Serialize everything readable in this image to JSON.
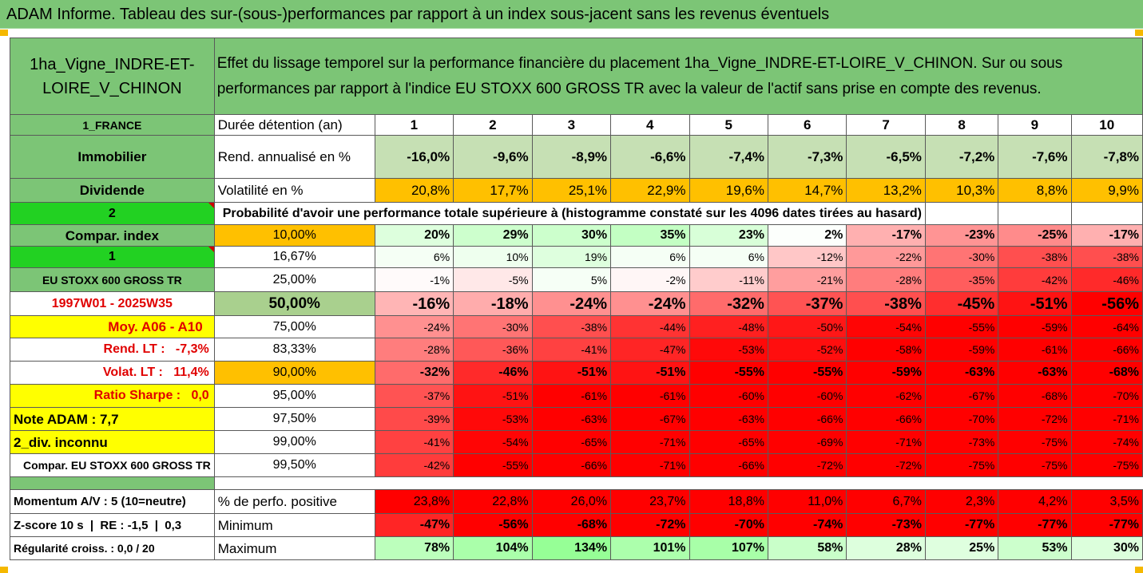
{
  "title": "ADAM Informe. Tableau des sur-(sous-)performances par rapport à un index sous-jacent sans les revenus éventuels",
  "header": {
    "asset": "1ha_Vigne_INDRE-ET-LOIRE_V_CHINON",
    "description": "Effet du lissage temporel sur la performance financière du placement 1ha_Vigne_INDRE-ET-LOIRE_V_CHINON. Sur ou sous performances par rapport à l'indice EU STOXX 600 GROSS TR avec la valeur de l'actif sans prise en compte des revenus."
  },
  "durations": {
    "label": "Durée détention (an)",
    "values": [
      "1",
      "2",
      "3",
      "4",
      "5",
      "6",
      "7",
      "8",
      "9",
      "10"
    ]
  },
  "rend": {
    "label": "Rend. annualisé en %",
    "values": [
      "-16,0%",
      "-9,6%",
      "-8,9%",
      "-6,6%",
      "-7,4%",
      "-7,3%",
      "-6,5%",
      "-7,2%",
      "-7,6%",
      "-7,8%"
    ]
  },
  "vol": {
    "label": "Volatilité en %",
    "values": [
      "20,8%",
      "17,7%",
      "25,1%",
      "22,9%",
      "19,6%",
      "14,7%",
      "13,2%",
      "10,3%",
      "8,8%",
      "9,9%"
    ]
  },
  "prob_header": "Probabilité d'avoir une performance totale supérieure à (histogramme constaté sur les 4096 dates tirées au hasard)",
  "left": {
    "country": "1_FRANCE",
    "category": "Immobilier",
    "dividend": "Dividende",
    "two": "2",
    "compar_index": "Compar. index",
    "one": "1",
    "index_name": "EU STOXX 600 GROSS TR",
    "period": "1997W01 - 2025W35",
    "moy": "Moy. A06 - A10",
    "rend_lt": "Rend. LT :   -7,3%",
    "volat_lt": "Volat. LT :   11,4%",
    "sharpe": "Ratio Sharpe :   0,0",
    "note": "Note ADAM : 7,7",
    "div": "2_div. inconnu",
    "compar": "Compar. EU STOXX 600 GROSS TR"
  },
  "prob_rows": [
    {
      "pct": "10,00%",
      "values": [
        "20%",
        "29%",
        "30%",
        "35%",
        "23%",
        "2%",
        "-17%",
        "-23%",
        "-25%",
        "-17%"
      ]
    },
    {
      "pct": "16,67%",
      "values": [
        "6%",
        "10%",
        "19%",
        "6%",
        "6%",
        "-12%",
        "-22%",
        "-30%",
        "-38%",
        "-38%"
      ]
    },
    {
      "pct": "25,00%",
      "values": [
        "-1%",
        "-5%",
        "5%",
        "-2%",
        "-11%",
        "-21%",
        "-28%",
        "-35%",
        "-42%",
        "-46%"
      ]
    },
    {
      "pct": "50,00%",
      "values": [
        "-16%",
        "-18%",
        "-24%",
        "-24%",
        "-32%",
        "-37%",
        "-38%",
        "-45%",
        "-51%",
        "-56%"
      ]
    },
    {
      "pct": "75,00%",
      "values": [
        "-24%",
        "-30%",
        "-38%",
        "-44%",
        "-48%",
        "-50%",
        "-54%",
        "-55%",
        "-59%",
        "-64%"
      ]
    },
    {
      "pct": "83,33%",
      "values": [
        "-28%",
        "-36%",
        "-41%",
        "-47%",
        "-53%",
        "-52%",
        "-58%",
        "-59%",
        "-61%",
        "-66%"
      ]
    },
    {
      "pct": "90,00%",
      "values": [
        "-32%",
        "-46%",
        "-51%",
        "-51%",
        "-55%",
        "-55%",
        "-59%",
        "-63%",
        "-63%",
        "-68%"
      ]
    },
    {
      "pct": "95,00%",
      "values": [
        "-37%",
        "-51%",
        "-61%",
        "-61%",
        "-60%",
        "-60%",
        "-62%",
        "-67%",
        "-68%",
        "-70%"
      ]
    },
    {
      "pct": "97,50%",
      "values": [
        "-39%",
        "-53%",
        "-63%",
        "-67%",
        "-63%",
        "-66%",
        "-66%",
        "-70%",
        "-72%",
        "-71%"
      ]
    },
    {
      "pct": "99,00%",
      "values": [
        "-41%",
        "-54%",
        "-65%",
        "-71%",
        "-65%",
        "-69%",
        "-71%",
        "-73%",
        "-75%",
        "-74%"
      ]
    },
    {
      "pct": "99,50%",
      "values": [
        "-42%",
        "-55%",
        "-66%",
        "-71%",
        "-66%",
        "-72%",
        "-72%",
        "-75%",
        "-75%",
        "-75%"
      ]
    }
  ],
  "bottom": {
    "momentum": "Momentum A/V : 5 (10=neutre)",
    "zscore": "Z-score 10 s  |  RE : -1,5  |  0,3",
    "regularite": "Régularité croiss. : 0,0 / 20",
    "pos_label": "% de perfo. positive",
    "pos_values": [
      "23,8%",
      "22,8%",
      "26,0%",
      "23,7%",
      "18,8%",
      "11,0%",
      "6,7%",
      "2,3%",
      "4,2%",
      "3,5%"
    ],
    "min_label": "Minimum",
    "min_values": [
      "-47%",
      "-56%",
      "-68%",
      "-72%",
      "-70%",
      "-74%",
      "-73%",
      "-77%",
      "-77%",
      "-77%"
    ],
    "max_label": "Maximum",
    "max_values": [
      "78%",
      "104%",
      "134%",
      "101%",
      "107%",
      "58%",
      "28%",
      "25%",
      "53%",
      "30%"
    ]
  },
  "colors": {
    "header_green": "#7cc576",
    "bright_green": "#22d122",
    "yellow": "#ffff00",
    "orange": "#ffc000",
    "red_text": "#e00000"
  }
}
